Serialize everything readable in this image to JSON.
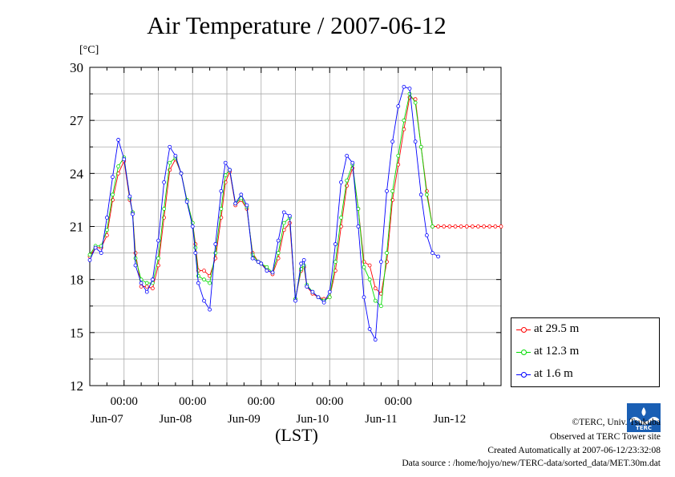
{
  "chart_data": {
    "type": "line",
    "title": "Air Temperature / 2007-06-12",
    "unit_label": "[°C]",
    "xlabel": "(LST)",
    "ylim": [
      12,
      30
    ],
    "yticks": [
      12,
      15,
      18,
      21,
      24,
      27,
      30
    ],
    "x_time_labels": [
      "00:00",
      "00:00",
      "00:00",
      "00:00",
      "00:00"
    ],
    "x_date_labels": [
      "Jun-07",
      "Jun-08",
      "Jun-09",
      "Jun-10",
      "Jun-11",
      "Jun-12"
    ],
    "x_range_hours": [
      -12,
      132
    ],
    "grid": true,
    "legend_position": "bottom-right",
    "series": [
      {
        "name": "at 29.5 m",
        "color": "#ff0000",
        "x_hours": [
          -12,
          -10,
          -8,
          -6,
          -4,
          -2,
          0,
          2,
          3,
          4,
          6,
          8,
          10,
          12,
          14,
          16,
          18,
          20,
          22,
          24,
          25,
          26,
          28,
          30,
          32,
          34,
          35.5,
          37,
          39,
          41,
          43,
          45,
          47,
          48,
          50,
          52,
          54,
          56,
          58,
          60,
          62,
          63,
          64,
          66,
          68,
          70,
          72,
          74,
          76,
          78,
          80,
          82,
          84,
          86,
          88,
          90,
          92,
          94,
          96,
          98,
          100,
          102,
          104,
          106,
          108,
          110,
          112,
          114,
          116,
          118,
          120,
          122,
          124,
          126,
          128,
          130,
          132
        ],
        "values": [
          19.3,
          19.8,
          19.8,
          20.5,
          22.5,
          24.0,
          24.7,
          22.5,
          21.8,
          19.5,
          17.6,
          17.6,
          17.5,
          18.8,
          21.5,
          24.2,
          24.8,
          24.0,
          22.5,
          21.2,
          20.0,
          18.5,
          18.5,
          18.2,
          19.2,
          21.5,
          23.5,
          24.1,
          22.2,
          22.5,
          22.0,
          19.5,
          19.0,
          18.9,
          18.6,
          18.3,
          19.2,
          20.8,
          21.2,
          16.9,
          18.5,
          18.7,
          17.6,
          17.2,
          17.0,
          16.9,
          17.0,
          18.5,
          21.0,
          23.3,
          24.3,
          22.0,
          19.0,
          18.8,
          17.5,
          17.2,
          19.0,
          22.5,
          24.5,
          26.5,
          28.3,
          28.2,
          25.5,
          23.0,
          21.0,
          21.0,
          21.0,
          21.0,
          21.0,
          21.0,
          21.0,
          21.0,
          21.0,
          21.0,
          21.0,
          21.0,
          21.0
        ]
      },
      {
        "name": "at 12.3 m",
        "color": "#00dd00",
        "x_hours": [
          -12,
          -10,
          -8,
          -6,
          -4,
          -2,
          0,
          2,
          3,
          4,
          6,
          8,
          10,
          12,
          14,
          16,
          18,
          20,
          22,
          24,
          25,
          26,
          28,
          30,
          32,
          34,
          35.5,
          37,
          39,
          41,
          43,
          45,
          47,
          48,
          50,
          52,
          54,
          56,
          58,
          60,
          62,
          63,
          64,
          66,
          68,
          70,
          72,
          74,
          76,
          78,
          80,
          82,
          84,
          86,
          88,
          90,
          92,
          94,
          96,
          98,
          100,
          102,
          104,
          106,
          108
        ],
        "values": [
          19.4,
          19.9,
          19.9,
          20.8,
          22.8,
          24.4,
          24.9,
          22.6,
          21.8,
          19.2,
          18.0,
          17.8,
          17.8,
          19.2,
          22.0,
          24.6,
          24.9,
          24.0,
          22.5,
          21.2,
          19.8,
          18.2,
          18.0,
          17.8,
          19.5,
          22.0,
          23.9,
          24.2,
          22.3,
          22.6,
          22.1,
          19.4,
          19.0,
          18.9,
          18.7,
          18.4,
          19.5,
          21.2,
          21.5,
          16.9,
          18.6,
          18.8,
          17.7,
          17.3,
          17.0,
          16.8,
          17.0,
          19.0,
          21.5,
          23.6,
          24.5,
          22.0,
          18.7,
          18.0,
          16.8,
          16.5,
          19.5,
          23.0,
          25.0,
          27.0,
          28.5,
          28.0,
          25.5,
          22.8,
          21.0
        ]
      },
      {
        "name": "at 1.6 m",
        "color": "#0000ff",
        "x_hours": [
          -12,
          -10,
          -8,
          -6,
          -4,
          -2,
          0,
          2,
          3,
          4,
          6,
          8,
          10,
          12,
          14,
          16,
          18,
          20,
          22,
          24,
          25,
          26,
          28,
          30,
          32,
          34,
          35.5,
          37,
          39,
          41,
          43,
          45,
          47,
          48,
          50,
          52,
          54,
          56,
          58,
          60,
          62,
          63,
          64,
          66,
          68,
          70,
          72,
          74,
          76,
          78,
          80,
          82,
          84,
          86,
          88,
          90,
          92,
          94,
          96,
          98,
          100,
          102,
          104,
          106,
          108,
          110
        ],
        "values": [
          19.1,
          19.8,
          19.5,
          21.5,
          23.8,
          25.9,
          24.8,
          22.7,
          21.7,
          18.8,
          17.8,
          17.3,
          18.0,
          20.2,
          23.5,
          25.5,
          25.0,
          24.0,
          22.4,
          21.0,
          19.5,
          17.8,
          16.8,
          16.3,
          20.0,
          23.0,
          24.6,
          24.2,
          22.3,
          22.8,
          22.2,
          19.2,
          19.0,
          18.9,
          18.5,
          18.4,
          20.2,
          21.8,
          21.6,
          16.8,
          18.9,
          19.1,
          17.6,
          17.3,
          17.0,
          16.7,
          17.3,
          20.0,
          23.5,
          25.0,
          24.6,
          21.0,
          17.0,
          15.2,
          14.6,
          19.0,
          23.0,
          25.8,
          27.8,
          28.9,
          28.8,
          25.8,
          22.8,
          20.5,
          19.5,
          19.3
        ]
      }
    ]
  },
  "footer": {
    "copyright": "©TERC, Univ. Tsukuba",
    "observed": "Observed at TERC Tower site",
    "created": "Created Automatically at 2007-06-12/23:32:08",
    "source": "Data source : /home/hojyo/new/TERC-data/sorted_data/MET.30m.dat"
  },
  "logo": {
    "text": "TERC",
    "color": "#1a5fb4"
  }
}
